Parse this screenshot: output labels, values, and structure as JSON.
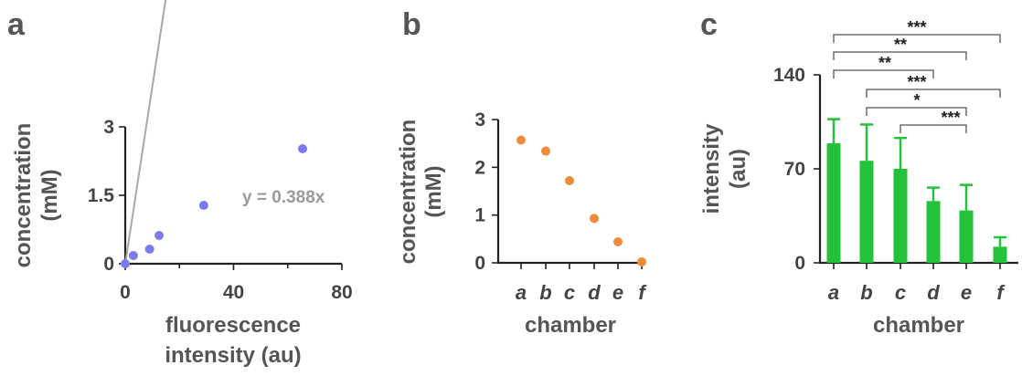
{
  "chart_data": [
    {
      "panel": "a",
      "type": "scatter",
      "xlabel_lines": [
        "fluorescence",
        "intensity (au)"
      ],
      "ylabel_lines": [
        "concentration",
        "(mM)"
      ],
      "xlim": [
        0,
        80
      ],
      "ylim": [
        0,
        3
      ],
      "xticks": [
        0,
        40,
        80
      ],
      "yticks": [
        "0",
        "1.5",
        "3"
      ],
      "point_color": "#7b7bef",
      "line_color": "#a8a8a8",
      "points": [
        {
          "x": 0,
          "y": 0
        },
        {
          "x": 3,
          "y": 0.18
        },
        {
          "x": 9,
          "y": 0.32
        },
        {
          "x": 12.5,
          "y": 0.62
        },
        {
          "x": 29,
          "y": 1.28
        },
        {
          "x": 65.5,
          "y": 2.52
        }
      ],
      "fit": {
        "slope": 0.388,
        "x_end": 65.5,
        "label": "y = 0.388x"
      }
    },
    {
      "panel": "b",
      "type": "scatter",
      "xlabel": "chamber",
      "ylabel_lines": [
        "concentration",
        "(mM)"
      ],
      "ylim": [
        0,
        3
      ],
      "yticks": [
        "0",
        "1",
        "2",
        "3"
      ],
      "categories": [
        "a",
        "b",
        "c",
        "d",
        "e",
        "f"
      ],
      "point_color": "#ef8c38",
      "values": [
        2.57,
        2.34,
        1.72,
        0.93,
        0.44,
        0.02
      ]
    },
    {
      "panel": "c",
      "type": "bar",
      "xlabel": "chamber",
      "ylabel_lines": [
        "intensity",
        "(au)"
      ],
      "ylim": [
        0,
        140
      ],
      "yticks": [
        "0",
        "70",
        "140"
      ],
      "categories": [
        "a",
        "b",
        "c",
        "d",
        "e",
        "f"
      ],
      "bar_color": "#22c23a",
      "values": [
        89,
        76,
        70,
        46,
        39,
        12
      ],
      "errors": [
        18,
        27,
        23,
        10,
        19,
        7
      ],
      "significance": [
        {
          "from": "a",
          "to": "d",
          "label": "**"
        },
        {
          "from": "a",
          "to": "e",
          "label": "**"
        },
        {
          "from": "a",
          "to": "f",
          "label": "***"
        },
        {
          "from": "b",
          "to": "f",
          "label": "***"
        },
        {
          "from": "b",
          "to": "e",
          "label": "*"
        },
        {
          "from": "c",
          "to": "e",
          "label": "***"
        }
      ]
    }
  ]
}
